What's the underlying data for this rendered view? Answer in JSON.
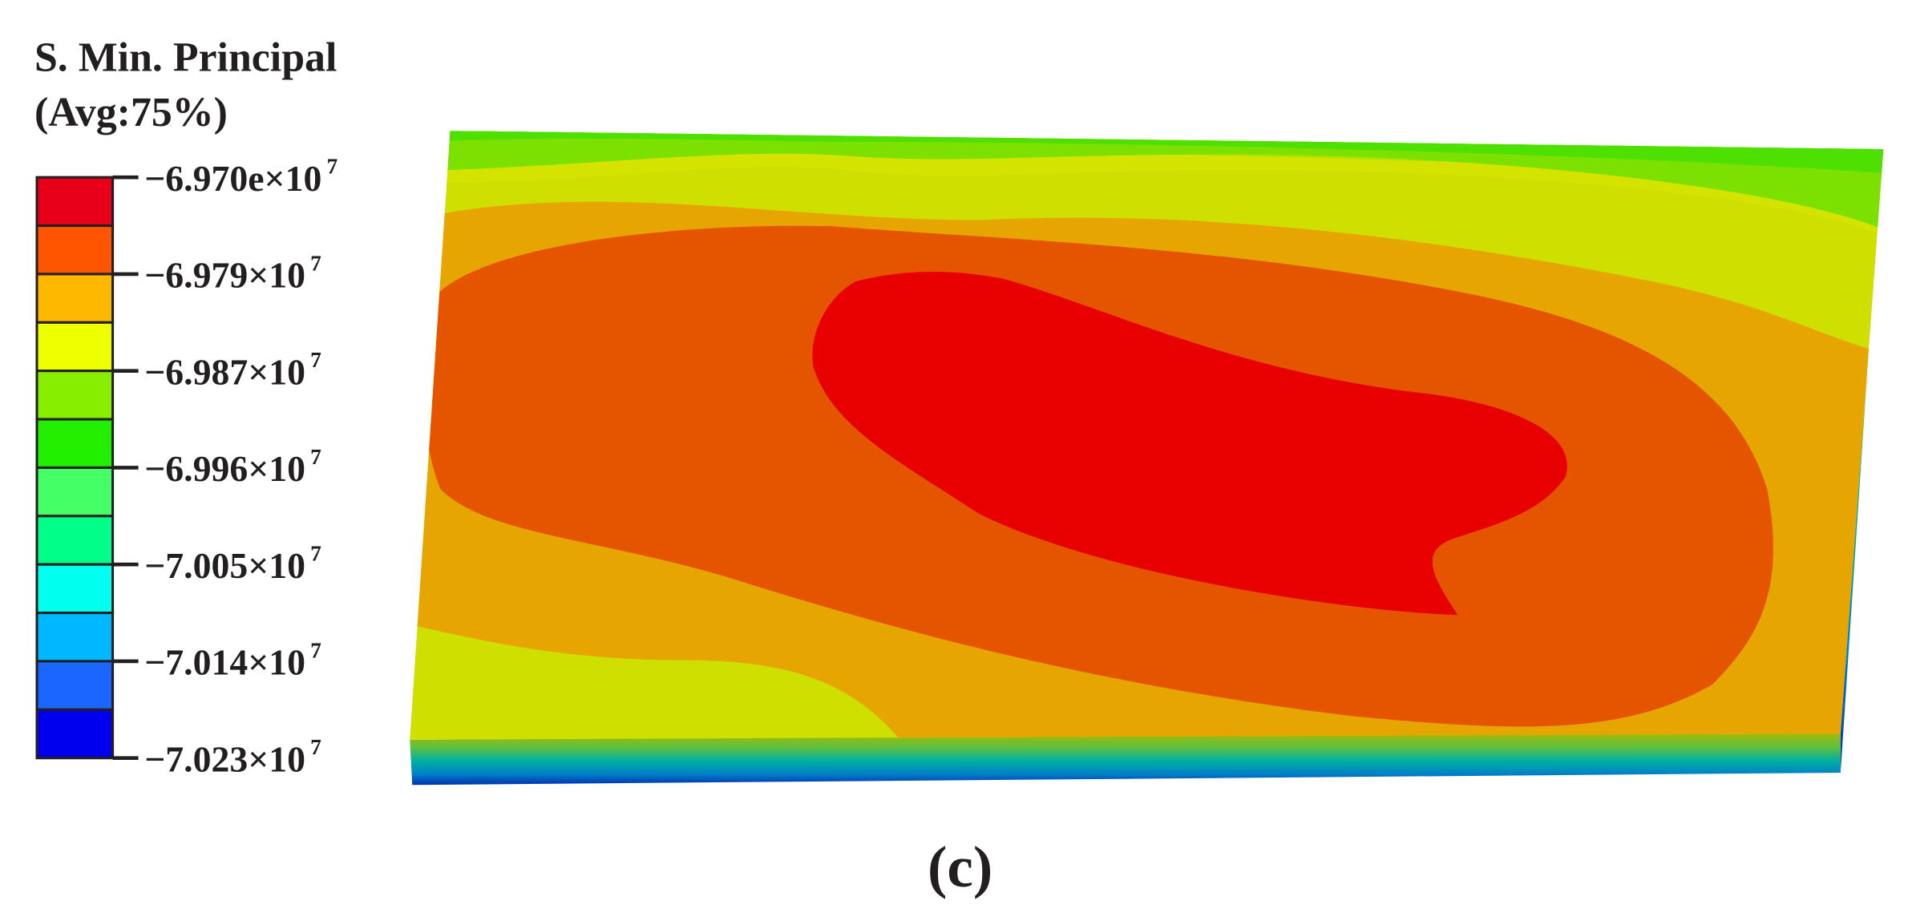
{
  "legend": {
    "title": [
      "S. Min. Principal",
      "(Avg:75%)"
    ],
    "colors": [
      "#e8001a",
      "#ff5500",
      "#ffb800",
      "#eeff00",
      "#88ee00",
      "#22ee00",
      "#44ff66",
      "#00ff88",
      "#00ffee",
      "#00b8ff",
      "#1a66ff",
      "#0000ee"
    ],
    "labels": [
      {
        "text": "−6.970e×10",
        "exponent": "7"
      },
      {
        "text": "−6.979×10",
        "exponent": "7"
      },
      {
        "text": "−6.987×10",
        "exponent": "7"
      },
      {
        "text": "−6.996×10",
        "exponent": "7"
      },
      {
        "text": "−7.005×10",
        "exponent": "7"
      },
      {
        "text": "−7.014×10",
        "exponent": "7"
      },
      {
        "text": "−7.023×10",
        "exponent": "7"
      }
    ]
  },
  "caption": "(c)"
}
